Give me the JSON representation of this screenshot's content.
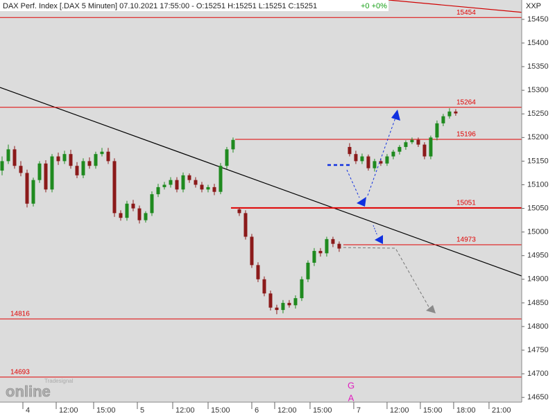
{
  "chart_data": {
    "type": "candlestick",
    "title": "DAX Perf. Index [.DAX  5 Minuten] 07.10.2021 17:55:00 - O:15251 H:15251 L:15251 C:15251",
    "change_text": "+0 +0%",
    "axis_label": "XXP",
    "markers": [
      "G",
      "A"
    ],
    "logo": {
      "small": "Tradesignal",
      "big": "online"
    },
    "up_color": "#1f8a1f",
    "down_color": "#8b1a1a",
    "level_color": "#e00000",
    "xlim": [
      0,
      250.7
    ],
    "ylim": [
      14640,
      15491
    ],
    "yticks": [
      15450,
      15400,
      15350,
      15300,
      15250,
      15200,
      15150,
      15100,
      15050,
      15000,
      14950,
      14900,
      14850,
      14800,
      14750,
      14700,
      14650
    ],
    "xticks": [
      {
        "value": 11,
        "label": "4"
      },
      {
        "value": 27,
        "label": "12:00"
      },
      {
        "value": 45,
        "label": "15:00"
      },
      {
        "value": 66,
        "label": "5"
      },
      {
        "value": 83,
        "label": "12:00"
      },
      {
        "value": 100,
        "label": "15:00"
      },
      {
        "value": 121,
        "label": "6"
      },
      {
        "value": 132,
        "label": "12:00"
      },
      {
        "value": 149,
        "label": "15:00"
      },
      {
        "value": 170,
        "label": "7"
      },
      {
        "value": 186,
        "label": "12:00"
      },
      {
        "value": 202,
        "label": "15:00"
      },
      {
        "value": 218,
        "label": "18:00"
      },
      {
        "value": 235,
        "label": "21:00"
      }
    ],
    "x": [
      1,
      4,
      7,
      10,
      13,
      16,
      19,
      22,
      25,
      28,
      31,
      34,
      37,
      40,
      43,
      46,
      49,
      52,
      55,
      58,
      61,
      64,
      67,
      70,
      73,
      76,
      79,
      82,
      85,
      88,
      91,
      94,
      97,
      100,
      103,
      106,
      109,
      112,
      115,
      118,
      121,
      124,
      127,
      130,
      133,
      136,
      139,
      142,
      145,
      148,
      151,
      154,
      157,
      160,
      163,
      168,
      171,
      174,
      177,
      180,
      183,
      186,
      189,
      192,
      195,
      198,
      201,
      204,
      207,
      210,
      213,
      216,
      219
    ],
    "open": [
      15130,
      15150,
      15175,
      15140,
      15125,
      15060,
      15110,
      15145,
      15090,
      15160,
      15150,
      15165,
      15140,
      15120,
      15150,
      15140,
      15165,
      15170,
      15150,
      15040,
      15030,
      15060,
      15050,
      15025,
      15040,
      15080,
      15095,
      15100,
      15110,
      15090,
      15120,
      15110,
      15100,
      15090,
      15095,
      15085,
      15140,
      15175,
      15048,
      15040,
      14990,
      14930,
      14900,
      14870,
      14840,
      14835,
      14850,
      14845,
      14860,
      14900,
      14935,
      14960,
      14955,
      14985,
      14975,
      15180,
      15165,
      15150,
      15160,
      15135,
      15150,
      15145,
      15160,
      15170,
      15180,
      15190,
      15195,
      15185,
      15160,
      15200,
      15230,
      15245,
      15255
    ],
    "high": [
      15160,
      15185,
      15182,
      15150,
      15132,
      15115,
      15150,
      15152,
      15165,
      15168,
      15172,
      15174,
      15148,
      15156,
      15158,
      15170,
      15178,
      15178,
      15156,
      15046,
      15066,
      15068,
      15056,
      15044,
      15086,
      15102,
      15106,
      15116,
      15116,
      15126,
      15124,
      15116,
      15106,
      15100,
      15102,
      15146,
      15180,
      15200,
      15052,
      15046,
      14996,
      14936,
      14906,
      14876,
      14846,
      14856,
      14856,
      14866,
      14906,
      14940,
      14966,
      14966,
      14990,
      14990,
      14980,
      15188,
      15172,
      15166,
      15164,
      15155,
      15156,
      15165,
      15174,
      15184,
      15194,
      15200,
      15200,
      15190,
      15204,
      15236,
      15250,
      15262,
      15260
    ],
    "low": [
      15120,
      15144,
      15134,
      15118,
      15052,
      15054,
      15104,
      15084,
      15084,
      15142,
      15144,
      15134,
      15114,
      15114,
      15134,
      15134,
      15160,
      15144,
      15032,
      15024,
      15024,
      15044,
      15018,
      15020,
      15034,
      15074,
      15090,
      15094,
      15084,
      15084,
      15104,
      15094,
      15084,
      15084,
      15078,
      15080,
      15134,
      15168,
      15034,
      14984,
      14924,
      14894,
      14864,
      14834,
      14826,
      14828,
      14840,
      14838,
      14854,
      14894,
      14928,
      14948,
      14948,
      14968,
      14958,
      15160,
      15144,
      15144,
      15130,
      15128,
      15140,
      15140,
      15154,
      15164,
      15174,
      15186,
      15180,
      15154,
      15154,
      15194,
      15224,
      15240,
      15246
    ],
    "close": [
      15150,
      15175,
      15140,
      15125,
      15060,
      15110,
      15145,
      15090,
      15160,
      15150,
      15165,
      15140,
      15120,
      15150,
      15140,
      15165,
      15170,
      15150,
      15040,
      15030,
      15060,
      15050,
      15025,
      15040,
      15080,
      15095,
      15100,
      15110,
      15090,
      15120,
      15110,
      15100,
      15090,
      15095,
      15085,
      15140,
      15175,
      15195,
      15040,
      14990,
      14930,
      14900,
      14870,
      14840,
      14835,
      14850,
      14845,
      14860,
      14900,
      14935,
      14960,
      14955,
      14985,
      14975,
      14965,
      15165,
      15150,
      15160,
      15135,
      15150,
      15145,
      15160,
      15170,
      15180,
      15190,
      15195,
      15185,
      15160,
      15200,
      15230,
      15245,
      15255,
      15251
    ],
    "levels": [
      {
        "value": 15454,
        "x0": 0
      },
      {
        "value": 15264,
        "x0": 0
      },
      {
        "value": 15196,
        "x0": 113
      },
      {
        "value": 15051,
        "x0": 111
      },
      {
        "value": 14973,
        "x0": 165
      },
      {
        "value": 14816,
        "x0": 0
      },
      {
        "value": 14693,
        "x0": 0
      }
    ],
    "trendlines": [
      {
        "x": [
          0,
          250.7
        ],
        "y": [
          15306,
          14907
        ],
        "color": "#000000"
      },
      {
        "x": [
          186.7,
          250.7
        ],
        "y": [
          15491,
          15465
        ],
        "color": "#d00000"
      }
    ]
  }
}
